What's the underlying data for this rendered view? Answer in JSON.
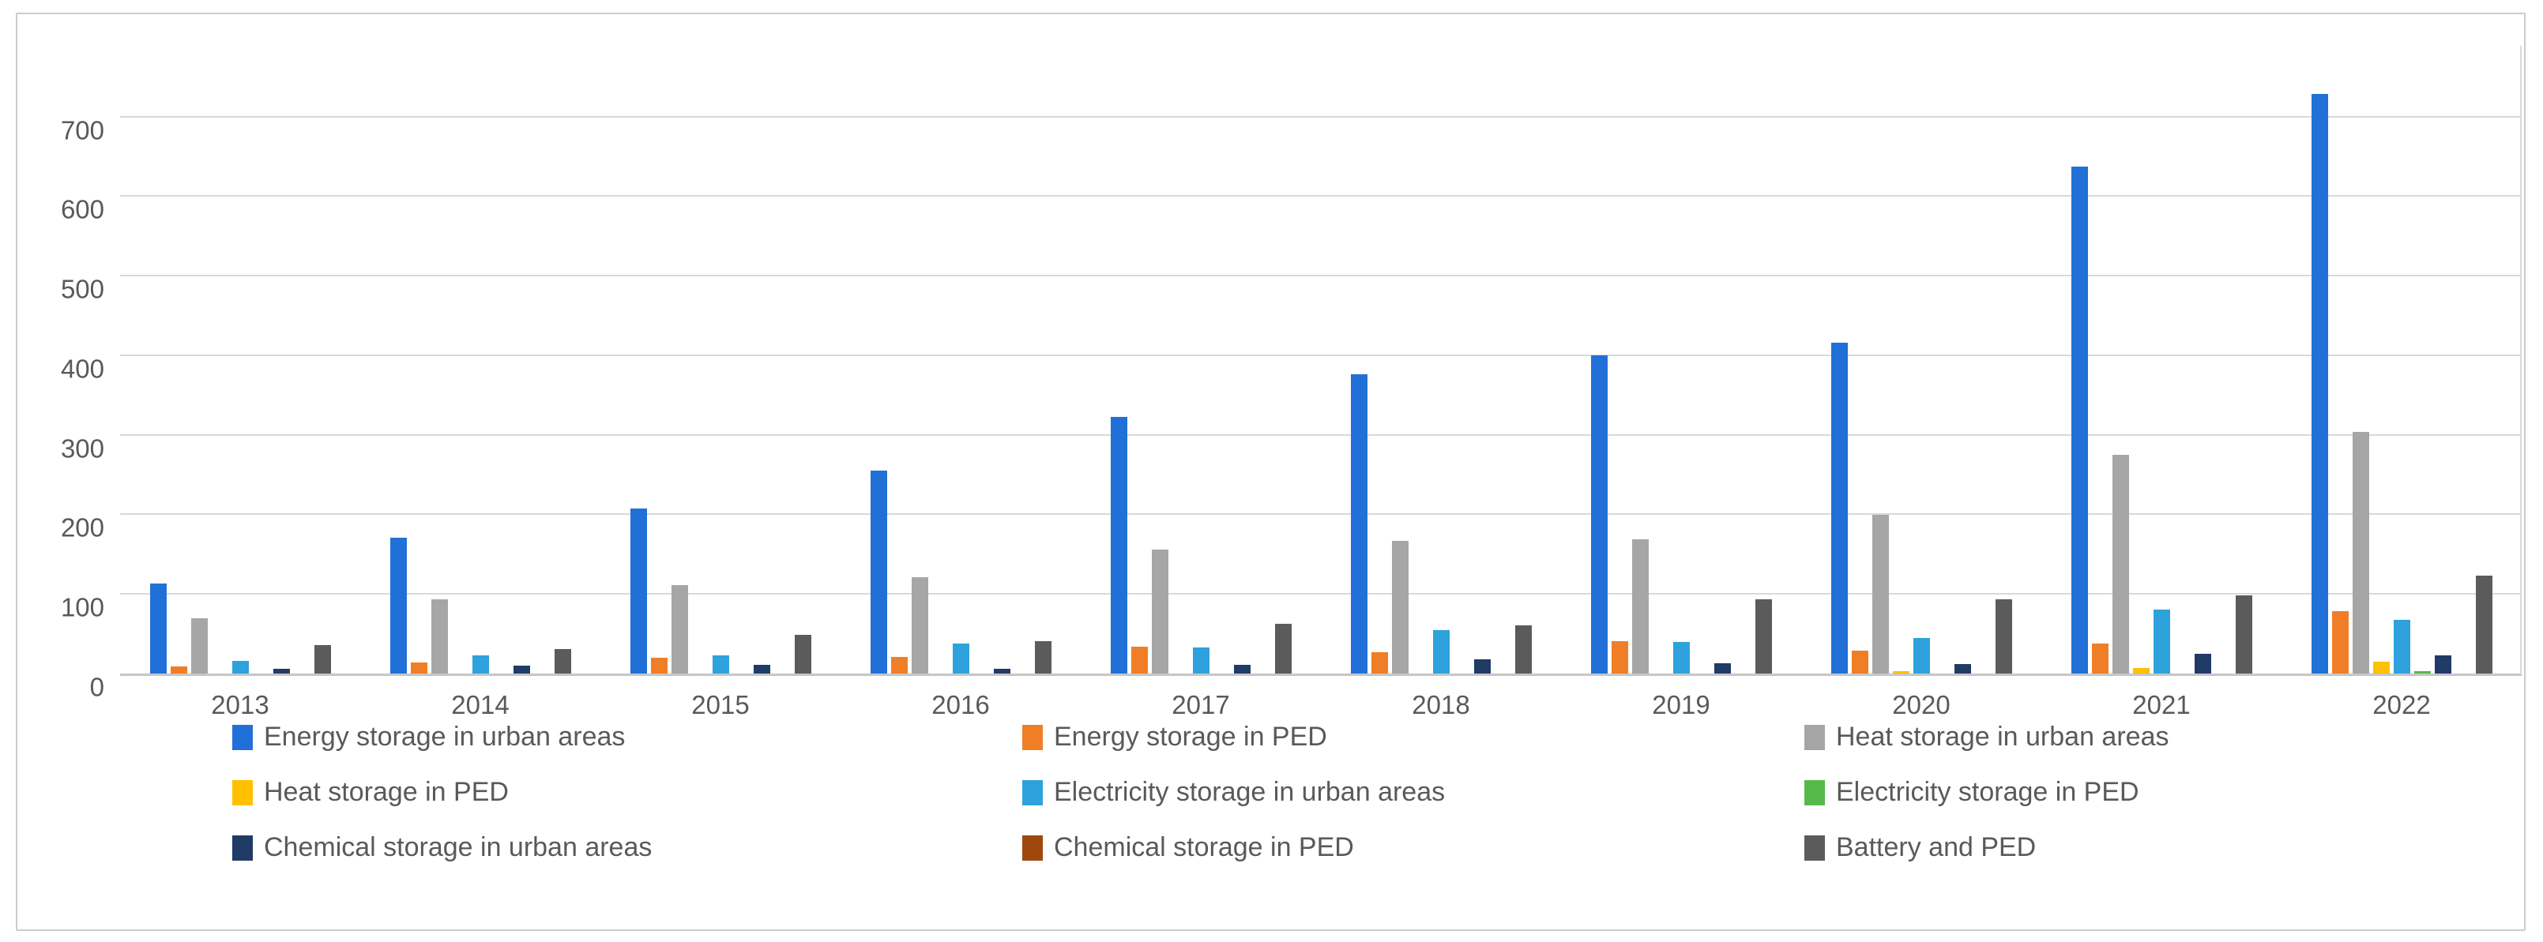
{
  "chart_data": {
    "type": "bar",
    "title": "",
    "xlabel": "",
    "ylabel": "",
    "categories": [
      "2013",
      "2014",
      "2015",
      "2016",
      "2017",
      "2018",
      "2019",
      "2020",
      "2021",
      "2022"
    ],
    "series": [
      {
        "name": "Energy storage in urban areas",
        "color": "#2170d8",
        "values": [
          114,
          172,
          208,
          256,
          324,
          377,
          401,
          417,
          638,
          729
        ]
      },
      {
        "name": "Energy storage in PED",
        "color": "#f07e27",
        "values": [
          10,
          15,
          21,
          22,
          35,
          28,
          42,
          30,
          39,
          79
        ]
      },
      {
        "name": "Heat storage in urban areas",
        "color": "#a6a6a6",
        "values": [
          70,
          94,
          112,
          122,
          157,
          168,
          170,
          200,
          276,
          305
        ]
      },
      {
        "name": "Heat storage in PED",
        "color": "#ffc000",
        "values": [
          0,
          0,
          0,
          0,
          0,
          0,
          0,
          4,
          8,
          16
        ]
      },
      {
        "name": "Electricity storage in urban areas",
        "color": "#2ea2dc",
        "values": [
          17,
          24,
          24,
          39,
          34,
          56,
          41,
          46,
          81,
          68
        ]
      },
      {
        "name": "Electricity storage in PED",
        "color": "#56b949",
        "values": [
          0,
          0,
          0,
          0,
          0,
          0,
          0,
          0,
          0,
          4
        ]
      },
      {
        "name": "Chemical storage in urban areas",
        "color": "#1f3b66",
        "values": [
          7,
          11,
          12,
          7,
          12,
          19,
          14,
          13,
          26,
          24
        ]
      },
      {
        "name": "Chemical storage in PED",
        "color": "#9e480e",
        "values": [
          0,
          0,
          0,
          0,
          0,
          0,
          0,
          0,
          0,
          0
        ]
      },
      {
        "name": "Battery and PED",
        "color": "#5b5b5b",
        "values": [
          37,
          32,
          50,
          42,
          64,
          62,
          94,
          94,
          99,
          124
        ]
      }
    ],
    "yticks": [
      0,
      100,
      200,
      300,
      400,
      500,
      600,
      700
    ],
    "ylim": [
      0,
      790
    ],
    "grid": true,
    "legend_position": "bottom",
    "axis_text_color": "#595959",
    "gridline_color": "#d9d9d9"
  }
}
